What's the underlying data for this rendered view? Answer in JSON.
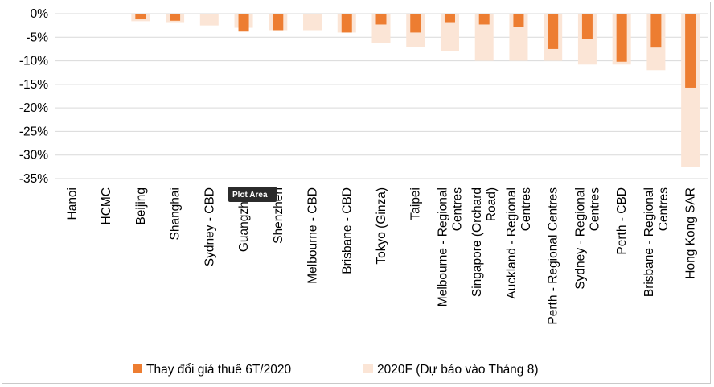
{
  "chart_data": {
    "type": "bar",
    "title": "",
    "xlabel": "",
    "ylabel": "",
    "ylim": [
      -35,
      0
    ],
    "yticks": [
      "0%",
      "-5%",
      "-10%",
      "-15%",
      "-20%",
      "-25%",
      "-30%",
      "-35%"
    ],
    "categories": [
      [
        "Hanoi"
      ],
      [
        "HCMC"
      ],
      [
        "Beijing"
      ],
      [
        "Shanghai"
      ],
      [
        "Sydney - CBD"
      ],
      [
        "Guangzhou"
      ],
      [
        "Shenzhen"
      ],
      [
        "Melbourne - CBD"
      ],
      [
        "Brisbane - CBD"
      ],
      [
        "Tokyo (Ginza)"
      ],
      [
        "Taipei"
      ],
      [
        "Melbourne - Regional",
        "Centres"
      ],
      [
        "Singapore (Orchard",
        "Road)"
      ],
      [
        "Auckland - Regional",
        "Centres"
      ],
      [
        "Perth - Regional Centres"
      ],
      [
        "Sydney - Regional",
        "Centres"
      ],
      [
        "Perth - CBD"
      ],
      [
        "Brisbane - Regional",
        "Centres"
      ],
      [
        "Hong Kong SAR"
      ]
    ],
    "series": [
      {
        "name": "Thay đổi giá thuê 6T/2020",
        "color": "#ed7d31",
        "values": [
          0,
          0,
          -1.2,
          -1.5,
          0,
          -3.8,
          -3.5,
          0,
          -4.0,
          -2.3,
          -4.0,
          -1.8,
          -2.3,
          -2.8,
          -7.5,
          -5.3,
          -10.2,
          -7.2,
          -15.7
        ]
      },
      {
        "name": "2020F (Dự báo vào Tháng 8)",
        "color": "#fbe5d6",
        "values": [
          0,
          0,
          -1.6,
          -1.8,
          -2.5,
          -3.0,
          -3.5,
          -3.5,
          -4.0,
          -6.3,
          -7.0,
          -8.0,
          -10.0,
          -10.0,
          -10.0,
          -10.8,
          -10.8,
          -12.0,
          -32.5
        ]
      }
    ],
    "legend": "bottom"
  },
  "tooltip": {
    "text": "Plot Area"
  }
}
